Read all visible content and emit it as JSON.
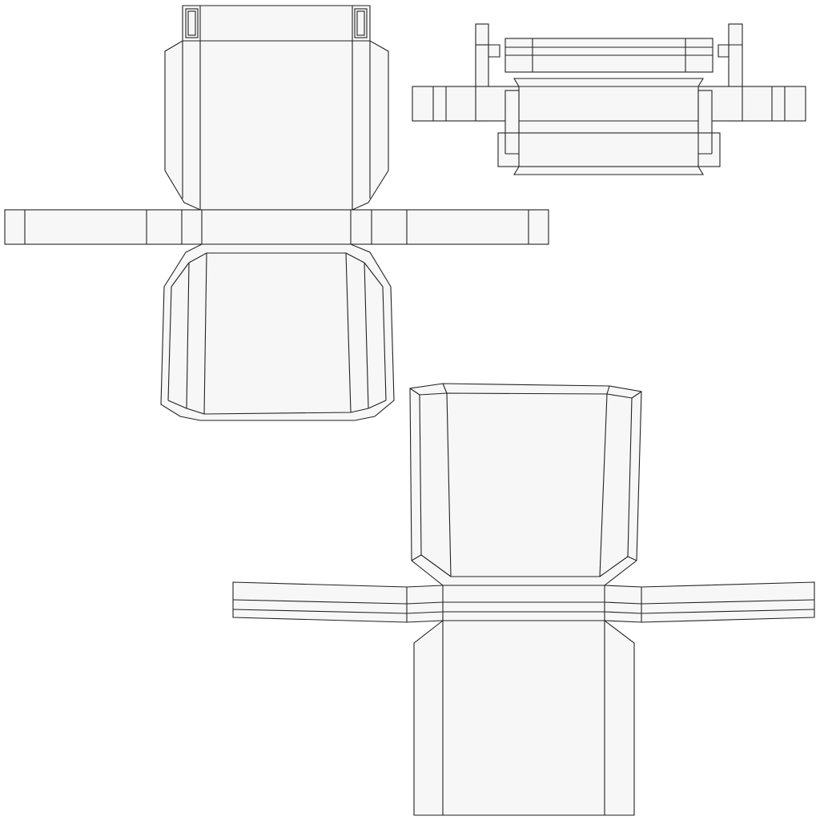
{
  "colors": {
    "background": "#ffffff",
    "panel_fill": "#f7f7f7",
    "line": "#222222"
  }
}
